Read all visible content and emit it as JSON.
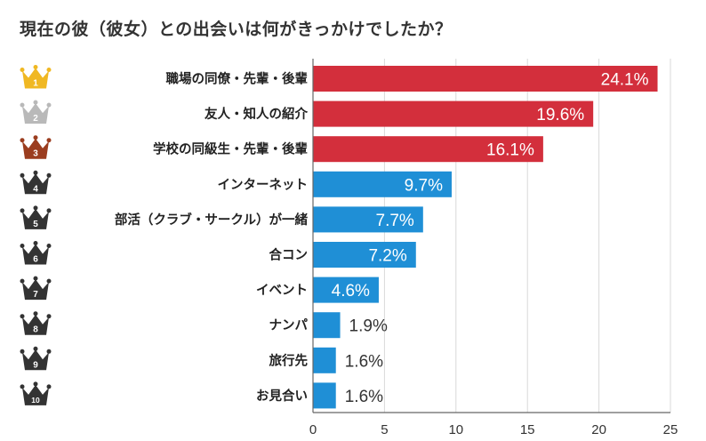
{
  "chart_data": {
    "type": "bar",
    "orientation": "horizontal",
    "title": "現在の彼（彼女）との出会いは何がきっかけでしたか？",
    "categories": [
      "職場の同僚・先輩・後輩",
      "友人・知人の紹介",
      "学校の同級生・先輩・後輩",
      "インターネット",
      "部活（クラブ・サークル）が一緒",
      "合コン",
      "イベント",
      "ナンパ",
      "旅行先",
      "お見合い"
    ],
    "values": [
      24.1,
      19.6,
      16.1,
      9.7,
      7.7,
      7.2,
      4.6,
      1.9,
      1.6,
      1.6
    ],
    "value_labels": [
      "24.1%",
      "19.6%",
      "16.1%",
      "9.7%",
      "7.7%",
      "7.2%",
      "4.6%",
      "1.9%",
      "1.6%",
      "1.6%"
    ],
    "ranks": [
      "1",
      "2",
      "3",
      "4",
      "5",
      "6",
      "7",
      "8",
      "9",
      "10"
    ],
    "xlim": [
      0,
      25
    ],
    "xticks": [
      0,
      5,
      10,
      15,
      20,
      25
    ],
    "grid": true,
    "legend": "none",
    "colors": {
      "top3_bar": "#d32f3c",
      "other_bar": "#1f8fd6",
      "crown_gold": "#f0b823",
      "crown_silver": "#b9b9b9",
      "crown_bronze": "#9b3d1f",
      "crown_other": "#333333",
      "grid": "#d9d9d9"
    },
    "icon": "crown-rank-icon"
  }
}
